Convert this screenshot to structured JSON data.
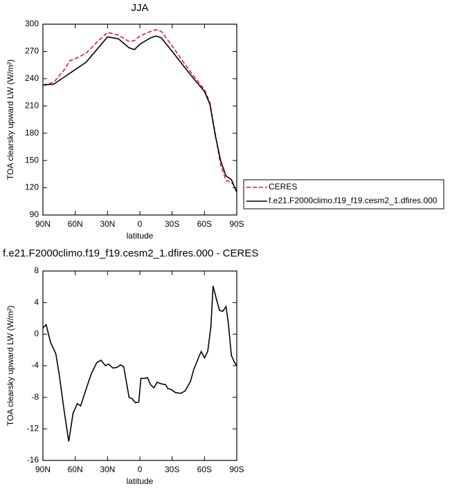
{
  "chart_data": [
    {
      "type": "line",
      "title": "JJA",
      "xlabel": "latitude",
      "ylabel": "TOA clearsky upward LW (W/m²)",
      "x": [
        90,
        80,
        70,
        65,
        60,
        50,
        40,
        30,
        20,
        10,
        5,
        0,
        -10,
        -15,
        -20,
        -30,
        -40,
        -50,
        -60,
        -65,
        -70,
        -75,
        -80,
        -85,
        -90
      ],
      "series": [
        {
          "name": "CERES",
          "color": "#e41a1c",
          "dash": true,
          "values": [
            233,
            236,
            250,
            260,
            262,
            268,
            280,
            291,
            288,
            281,
            282,
            287,
            292,
            294,
            292,
            276,
            259,
            243,
            228,
            214,
            180,
            145,
            128,
            126,
            119
          ]
        },
        {
          "name": "f.e21.F2000climo.f19_f19.cesm2_1.dfires.000",
          "color": "#000000",
          "dash": false,
          "values": [
            233,
            234,
            242,
            246,
            250,
            258,
            272,
            286,
            284,
            274,
            272,
            278,
            285,
            287,
            285,
            270,
            255,
            240,
            226,
            212,
            178,
            150,
            133,
            129,
            115
          ]
        }
      ],
      "xlim": [
        90,
        -90
      ],
      "xticks": [
        {
          "value": 90,
          "label": "90N"
        },
        {
          "value": 60,
          "label": "60N"
        },
        {
          "value": 30,
          "label": "30N"
        },
        0,
        {
          "value": -30,
          "label": "30S"
        },
        {
          "value": -60,
          "label": "60S"
        },
        {
          "value": -90,
          "label": "90S"
        }
      ],
      "ylim": [
        90,
        300
      ],
      "yticks": [
        90,
        120,
        150,
        180,
        210,
        240,
        270,
        300
      ],
      "legend": "right"
    },
    {
      "type": "line",
      "title": "f.e21.F2000climo.f19_f19.cesm2_1.dfires.000 - CERES",
      "xlabel": "latitude",
      "ylabel": "TOA clearsky upward LW (W/m²)",
      "x": [
        90,
        87,
        83,
        78,
        75,
        70,
        66,
        62,
        58,
        55,
        50,
        45,
        40,
        36,
        32,
        29,
        25,
        21,
        18,
        15,
        10,
        7,
        4,
        1,
        -1,
        -5,
        -7,
        -10,
        -13,
        -16,
        -20,
        -24,
        -26,
        -29,
        -33,
        -38,
        -42,
        -47,
        -50,
        -55,
        -57,
        -60,
        -63,
        -66,
        -68,
        -71,
        -74,
        -77,
        -80,
        -82,
        -85,
        -88,
        -90
      ],
      "series": [
        {
          "color": "#000000",
          "dash": false,
          "values": [
            0.8,
            1.2,
            -1,
            -2.5,
            -5,
            -10,
            -13.6,
            -10,
            -8.8,
            -9.1,
            -7,
            -5,
            -3.6,
            -3.3,
            -4,
            -3.8,
            -4.3,
            -4.2,
            -3.9,
            -4.1,
            -8,
            -8.2,
            -8.7,
            -8.6,
            -5.6,
            -5.6,
            -5.5,
            -6.4,
            -6.8,
            -6.1,
            -6.3,
            -6.4,
            -6.9,
            -7.0,
            -7.4,
            -7.5,
            -7.2,
            -6.0,
            -4.5,
            -2.8,
            -2.2,
            -3.0,
            -2.2,
            1,
            6.1,
            4.5,
            3.0,
            2.9,
            3.5,
            1.6,
            -2.7,
            -3.6,
            -4.0
          ]
        }
      ],
      "xlim": [
        90,
        -90
      ],
      "xticks": [
        {
          "value": 90,
          "label": "90N"
        },
        {
          "value": 60,
          "label": "60N"
        },
        {
          "value": 30,
          "label": "30N"
        },
        0,
        {
          "value": -30,
          "label": "30S"
        },
        {
          "value": -60,
          "label": "60S"
        },
        {
          "value": -90,
          "label": "90S"
        }
      ],
      "ylim": [
        -16,
        8
      ],
      "yticks": [
        -16,
        -12,
        -8,
        -4,
        0,
        4,
        8
      ]
    }
  ]
}
